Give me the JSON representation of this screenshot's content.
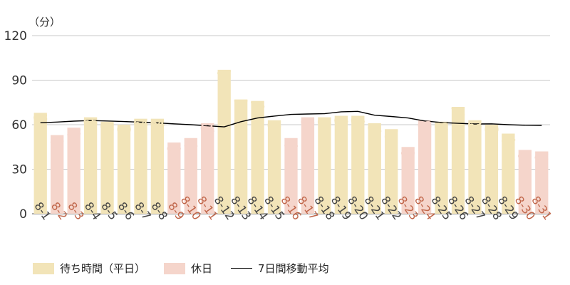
{
  "chart_data": {
    "type": "bar",
    "unit_label": "（分）",
    "yticks": [
      0,
      30,
      60,
      90,
      120
    ],
    "ylim": [
      0,
      120
    ],
    "categories": [
      "8-1",
      "8-2",
      "8-3",
      "8-4",
      "8-5",
      "8-6",
      "8-7",
      "8-8",
      "8-9",
      "8-10",
      "8-11",
      "8-12",
      "8-13",
      "8-14",
      "8-15",
      "8-16",
      "8-17",
      "8-18",
      "8-19",
      "8-20",
      "8-21",
      "8-22",
      "8-23",
      "8-24",
      "8-25",
      "8-26",
      "8-27",
      "8-28",
      "8-29",
      "8-30",
      "8-31"
    ],
    "values": [
      68,
      53,
      58,
      65,
      62,
      60,
      64,
      64,
      48,
      51,
      61,
      97,
      77,
      76,
      63,
      51,
      65,
      65,
      66,
      66,
      61,
      57,
      45,
      63,
      62,
      72,
      63,
      60,
      54,
      43,
      42
    ],
    "is_holiday": [
      false,
      true,
      true,
      false,
      false,
      false,
      false,
      false,
      true,
      true,
      true,
      false,
      false,
      false,
      false,
      true,
      true,
      false,
      false,
      false,
      false,
      false,
      true,
      true,
      false,
      false,
      false,
      false,
      false,
      true,
      true
    ],
    "moving_average": [
      61.3,
      61.8,
      62.4,
      62.8,
      62.5,
      62.1,
      61.7,
      61.2,
      60.6,
      60.0,
      59.3,
      58.5,
      62.0,
      64.5,
      65.8,
      66.9,
      67.2,
      67.4,
      68.7,
      69.0,
      66.4,
      65.5,
      64.5,
      62.5,
      61.5,
      60.9,
      60.5,
      60.6,
      60.0,
      59.6,
      59.5
    ],
    "series": [
      {
        "name": "待ち時間（平日）",
        "color": "#f2e4b8"
      },
      {
        "name": "休日",
        "color": "#f5d5cb"
      },
      {
        "name": "7日間移動平均",
        "color": "#000000"
      }
    ],
    "colors": {
      "weekday_bar": "#f2e4b8",
      "holiday_bar": "#f5d5cb",
      "weekday_label": "#f2e4b8",
      "holiday_label": "#f5d5cb",
      "weekday_tick": "#444444",
      "holiday_tick": "#c0664a",
      "grid": "#c8c8c8",
      "line": "#000000"
    }
  }
}
